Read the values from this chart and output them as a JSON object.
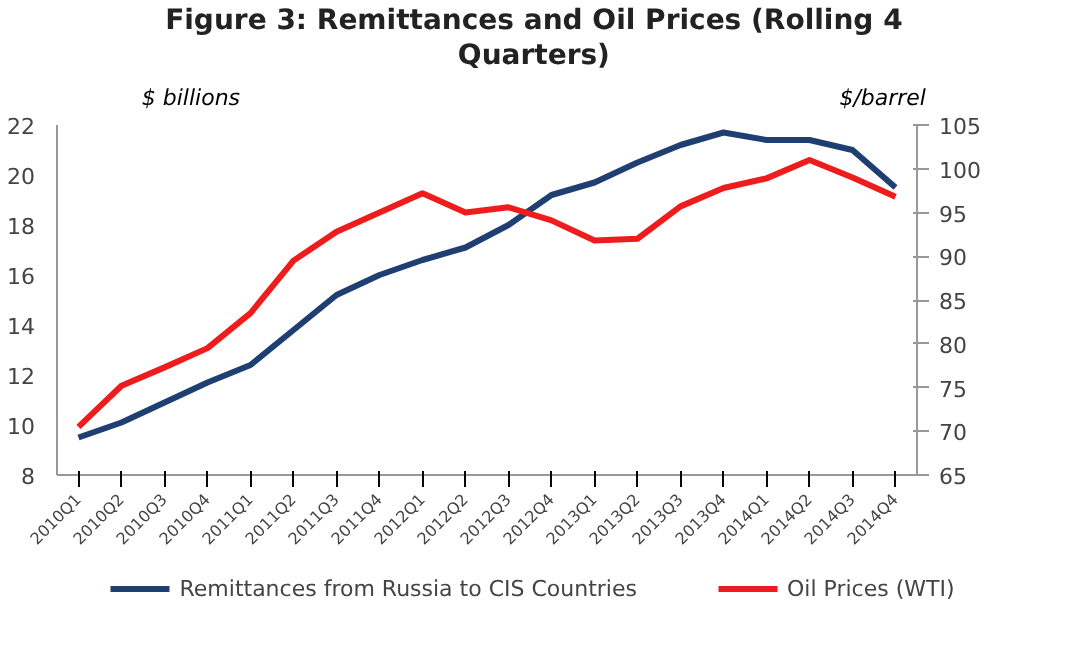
{
  "chart_data": {
    "type": "line",
    "title": "Figure 3: Remittances and Oil Prices (Rolling 4 Quarters)",
    "ylabel": "$ billions",
    "y2label": "$/barrel",
    "categories": [
      "2010Q1",
      "2010Q2",
      "2010Q3",
      "2010Q4",
      "2011Q1",
      "2011Q2",
      "2011Q3",
      "2011Q4",
      "2012Q1",
      "2012Q2",
      "2012Q3",
      "2012Q4",
      "2013Q1",
      "2013Q2",
      "2013Q3",
      "2013Q4",
      "2014Q1",
      "2014Q2",
      "2014Q3",
      "2014Q4"
    ],
    "series": [
      {
        "name": "Remittances from Russia to CIS Countries",
        "color": "#1f3f73",
        "values": [
          9.5,
          10.1,
          10.9,
          11.7,
          12.4,
          13.8,
          15.2,
          16.0,
          16.6,
          17.1,
          18.0,
          19.2,
          19.7,
          20.5,
          21.2,
          21.7,
          21.4,
          21.4,
          21.0,
          19.5
        ]
      },
      {
        "name": "Oil Prices (WTI)",
        "color": "#ee1c1c",
        "axis": "y2",
        "values": [
          70.5,
          75.2,
          77.3,
          79.5,
          83.5,
          89.5,
          92.8,
          95.0,
          97.2,
          95.0,
          95.6,
          94.1,
          91.8,
          92.0,
          95.7,
          97.8,
          98.9,
          101.0,
          99.0,
          96.8
        ]
      }
    ],
    "ylim": [
      8,
      22
    ],
    "yticks": [
      8,
      10,
      12,
      14,
      16,
      18,
      20,
      22
    ],
    "y2lim": [
      65,
      105
    ],
    "y2ticks": [
      65,
      70,
      75,
      80,
      85,
      90,
      95,
      100,
      105
    ],
    "grid": false,
    "legend": "bottom",
    "marker": "none",
    "line_style": "solid"
  }
}
